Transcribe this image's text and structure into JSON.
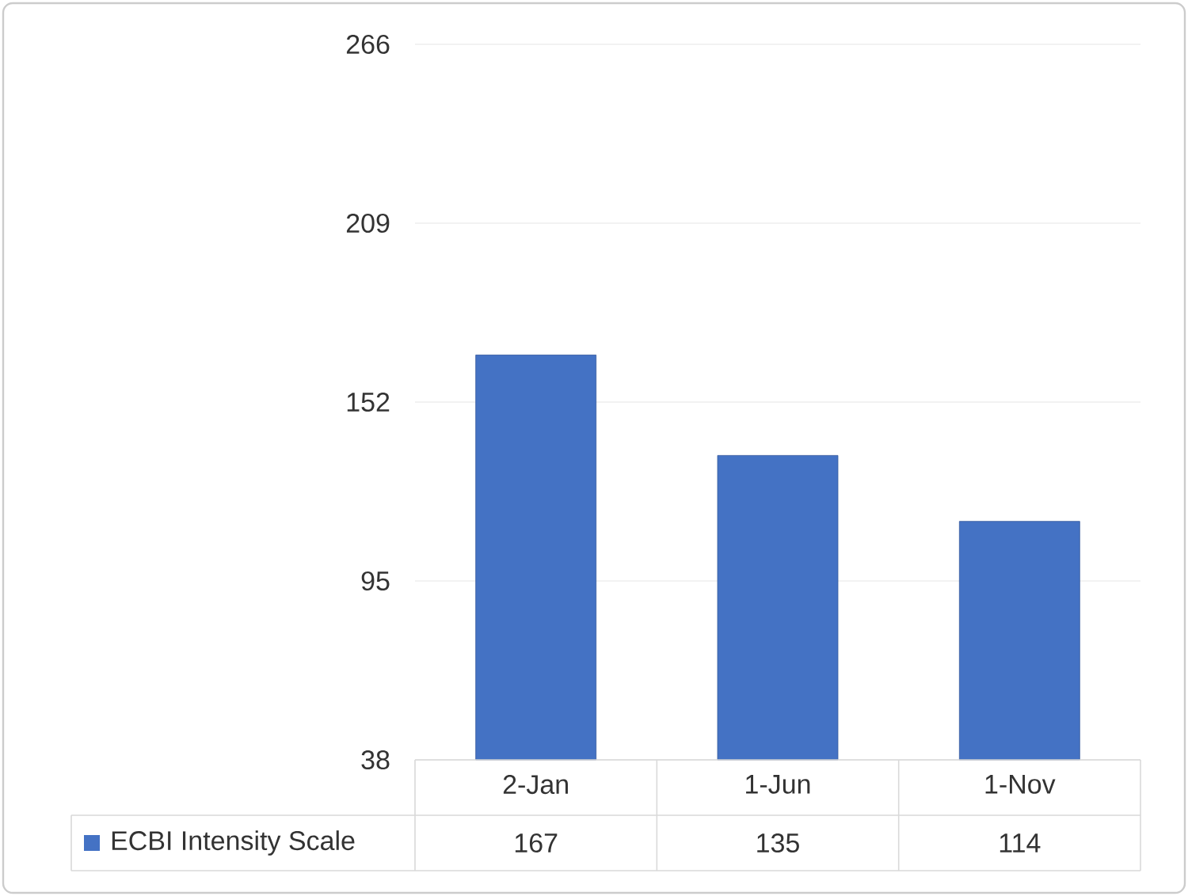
{
  "chart_data": {
    "type": "bar",
    "categories": [
      "2-Jan",
      "1-Jun",
      "1-Nov"
    ],
    "series": [
      {
        "name": "ECBI Intensity Scale",
        "color": "#4472c4",
        "values": [
          167,
          135,
          114
        ]
      }
    ],
    "ylim": [
      38,
      266
    ],
    "yticks": [
      38,
      95,
      152,
      209,
      266
    ],
    "grid": "y",
    "legend": "bottom",
    "data_labels": true
  }
}
